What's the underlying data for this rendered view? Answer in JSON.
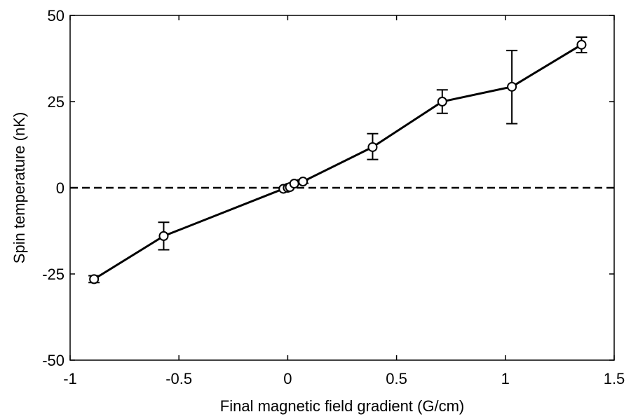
{
  "chart_data": {
    "type": "line",
    "title": "",
    "xlabel": "Final magnetic field gradient (G/cm)",
    "ylabel": "Spin temperature (nK)",
    "xlim": [
      -1,
      1.5
    ],
    "ylim": [
      -50,
      50
    ],
    "xticks": [
      -1,
      -0.5,
      0,
      0.5,
      1,
      1.5
    ],
    "xtick_labels": [
      "-1",
      "-0.5",
      "0",
      "0.5",
      "1",
      "1.5"
    ],
    "yticks": [
      -50,
      -25,
      0,
      25,
      50
    ],
    "ytick_labels": [
      "-50",
      "-25",
      "0",
      "25",
      "50"
    ],
    "grid": false,
    "reference_line": {
      "y": 0,
      "style": "dashed"
    },
    "series": [
      {
        "x": [
          -0.89,
          -0.57,
          -0.02,
          0.0,
          0.01,
          0.03,
          0.07,
          0.39,
          0.71,
          1.03,
          1.35
        ],
        "y": [
          -26.5,
          -14.0,
          -0.3,
          0.0,
          0.2,
          1.2,
          1.8,
          11.8,
          25.0,
          29.3,
          41.5
        ],
        "err_low": [
          1.0,
          4.0,
          0.3,
          0.3,
          0.3,
          0.4,
          0.5,
          3.6,
          3.4,
          10.7,
          2.3
        ],
        "err_high": [
          1.0,
          4.0,
          0.3,
          0.3,
          0.3,
          0.4,
          0.5,
          3.9,
          3.4,
          10.5,
          2.2
        ],
        "color": "#000000",
        "marker": "open-circle"
      }
    ]
  }
}
